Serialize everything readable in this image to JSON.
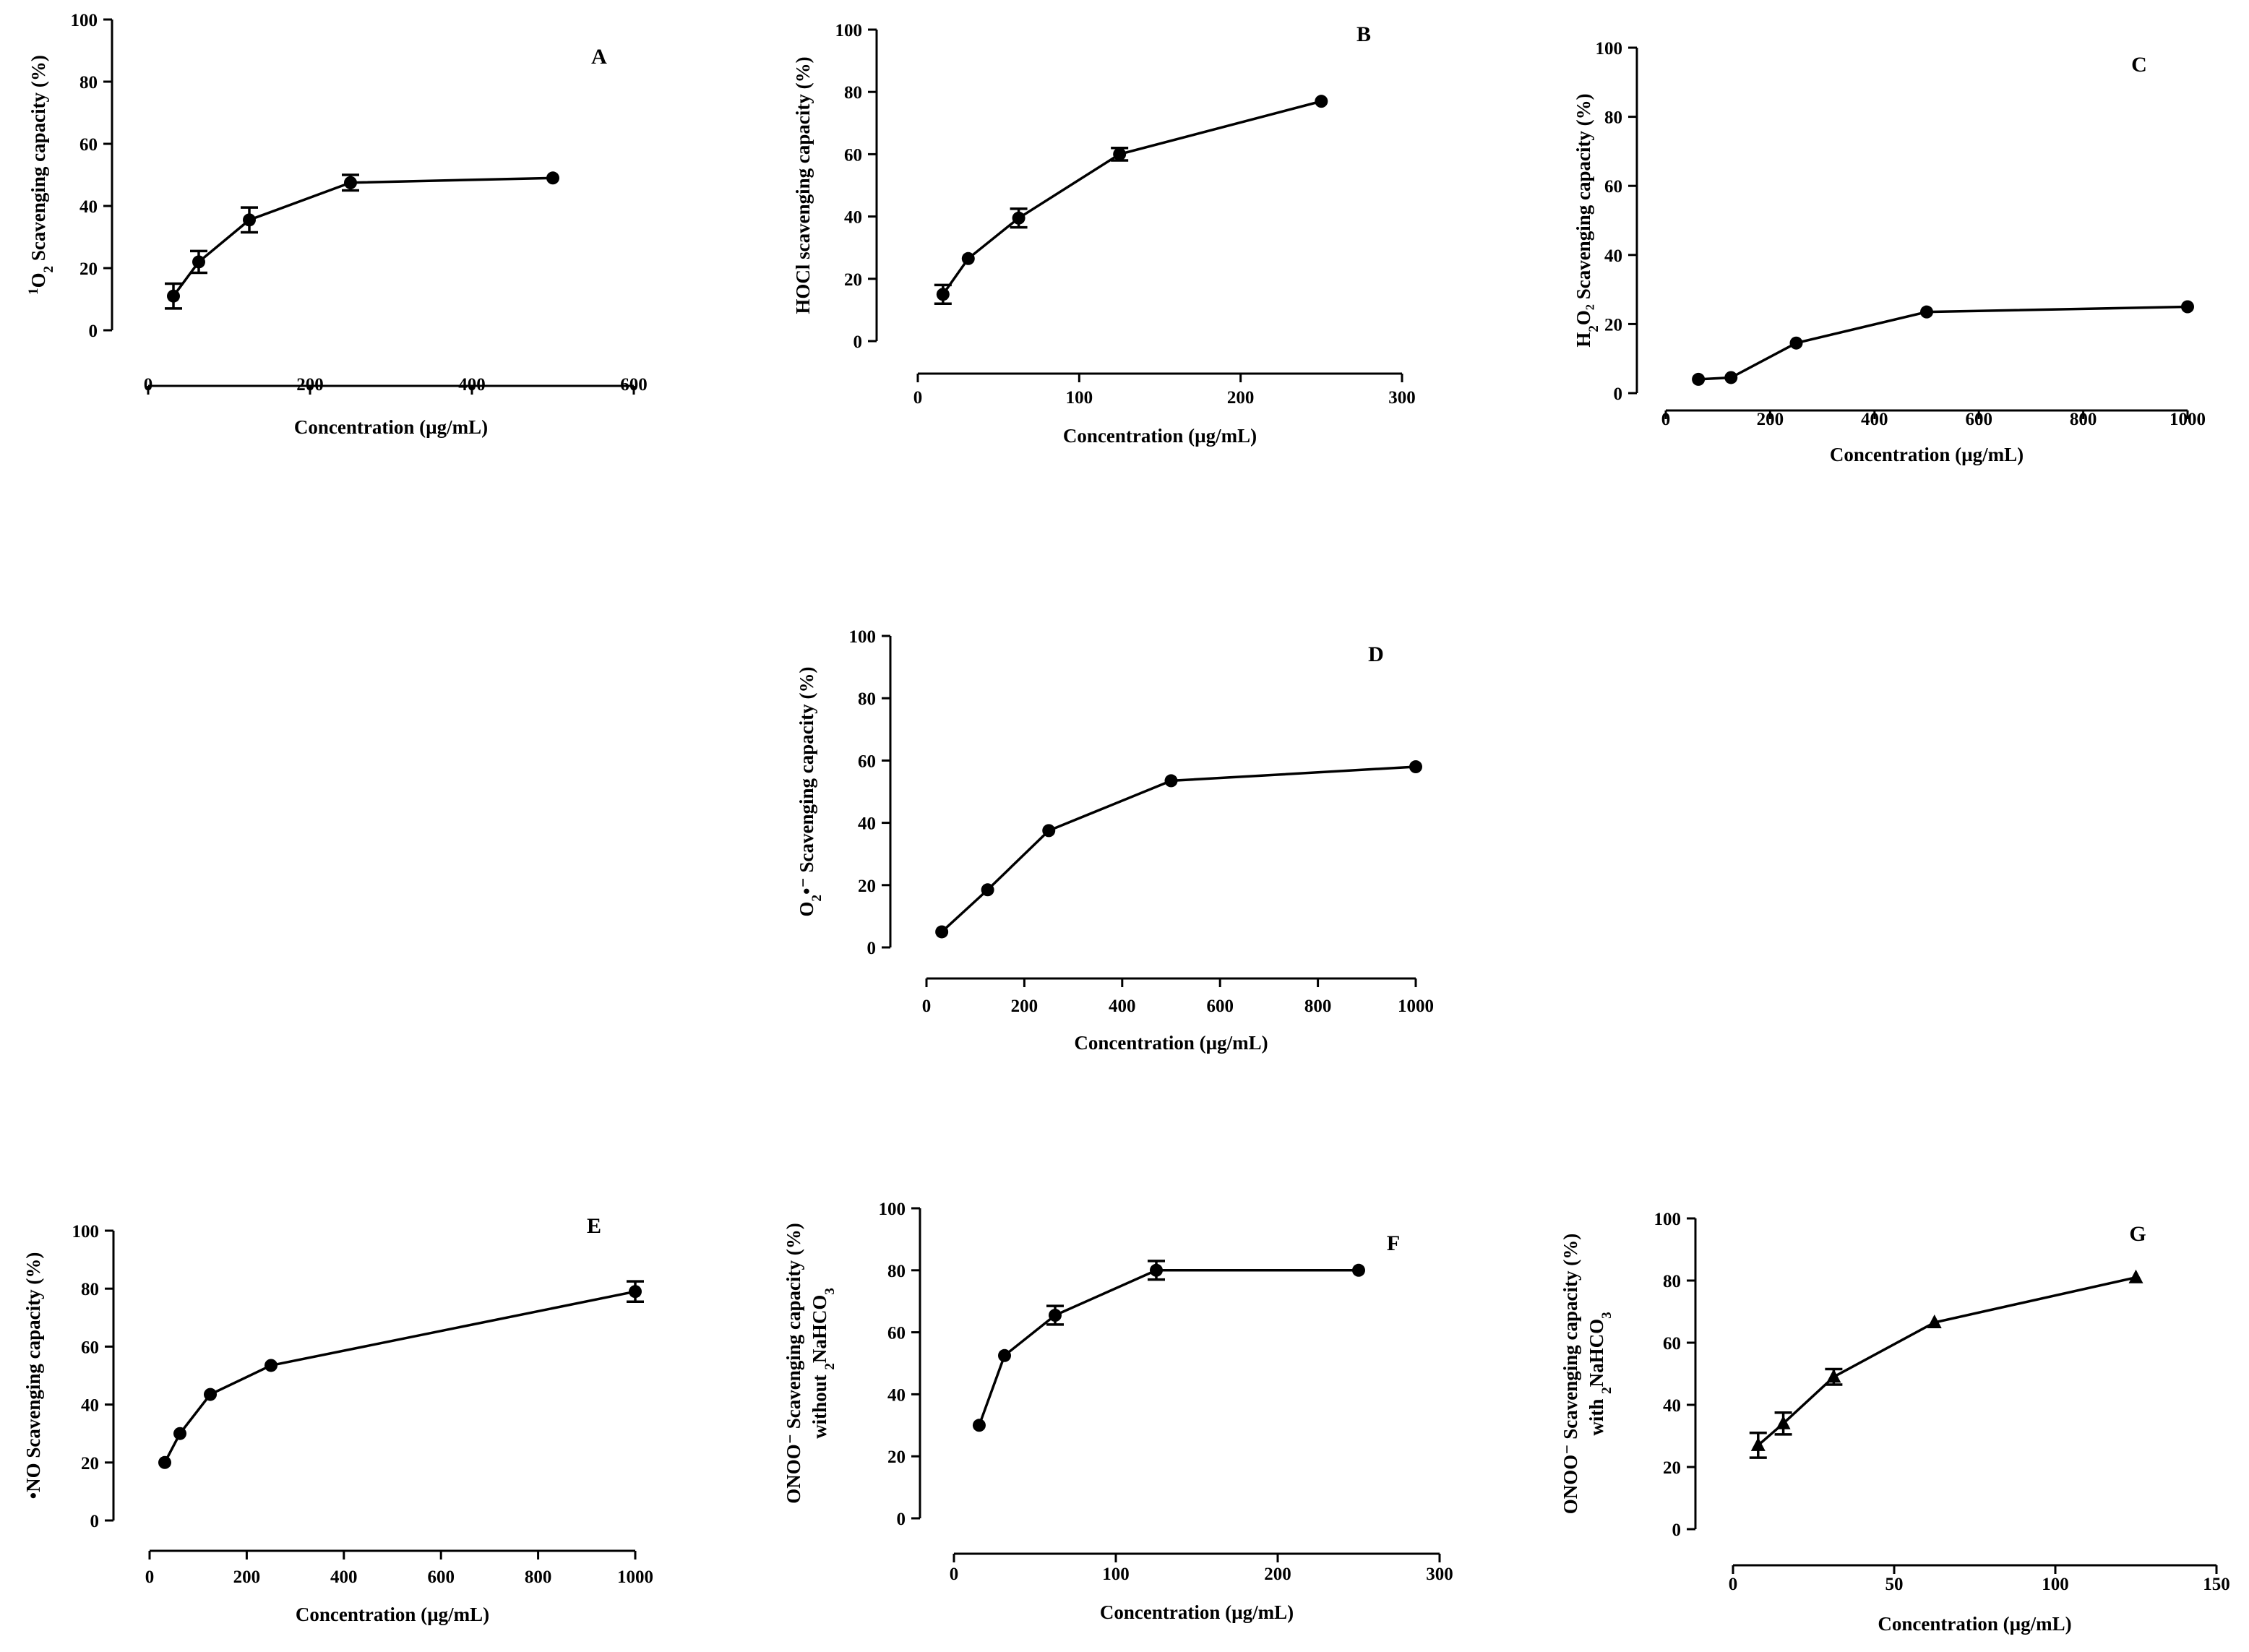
{
  "chart_data": [
    {
      "id": "A",
      "type": "line",
      "letter": "A",
      "xlabel": "Concentration (µg/mL)",
      "ylabel": {
        "pre": "",
        "sup": "1",
        "main": "O",
        "sub": "2",
        "rest": " Scavenging capacity (%)"
      },
      "xlim": [
        0,
        600
      ],
      "ylim": [
        0,
        100
      ],
      "xticks": [
        0,
        200,
        400,
        600
      ],
      "yticks": [
        0,
        20,
        40,
        60,
        80,
        100
      ],
      "marker": "circle",
      "x": [
        31.25,
        62.5,
        125,
        250,
        500
      ],
      "y": [
        11,
        22,
        35.5,
        47.5,
        49
      ],
      "err": [
        4,
        3.5,
        4,
        2.5,
        0
      ]
    },
    {
      "id": "B",
      "type": "line",
      "letter": "B",
      "xlabel": "Concentration (µg/mL)",
      "ylabel": {
        "pre": "",
        "sup": "",
        "main": "HOCl scavenging capacity (%)",
        "sub": "",
        "rest": ""
      },
      "xlim": [
        0,
        300
      ],
      "ylim": [
        0,
        100
      ],
      "xticks": [
        0,
        100,
        200,
        300
      ],
      "yticks": [
        0,
        20,
        40,
        60,
        80,
        100
      ],
      "marker": "circle",
      "x": [
        15.6,
        31.25,
        62.5,
        125,
        250
      ],
      "y": [
        15,
        26.5,
        39.5,
        60,
        77
      ],
      "err": [
        3,
        0,
        3,
        2,
        0
      ]
    },
    {
      "id": "C",
      "type": "line",
      "letter": "C",
      "xlabel": "Concentration (µg/mL)",
      "ylabel": {
        "pre": "",
        "sup": "",
        "main": "H",
        "sub": "2",
        "rest": "O₂ Scavenging capacity (%)"
      },
      "xlim": [
        0,
        1000
      ],
      "ylim": [
        0,
        100
      ],
      "xticks": [
        0,
        200,
        400,
        600,
        800,
        1000
      ],
      "yticks": [
        0,
        20,
        40,
        60,
        80,
        100
      ],
      "marker": "circle",
      "x": [
        62.5,
        125,
        250,
        500,
        1000
      ],
      "y": [
        4,
        4.5,
        14.5,
        23.5,
        25
      ],
      "err": [
        0,
        0,
        0,
        0,
        0
      ]
    },
    {
      "id": "D",
      "type": "line",
      "letter": "D",
      "xlabel": "Concentration (µg/mL)",
      "ylabel": {
        "pre": "",
        "sup": "",
        "main": "O",
        "sub": "2",
        "rest": "•⁻ Scavenging capacity (%)"
      },
      "xlim": [
        0,
        1000
      ],
      "ylim": [
        0,
        100
      ],
      "xticks": [
        0,
        200,
        400,
        600,
        800,
        1000
      ],
      "yticks": [
        0,
        20,
        40,
        60,
        80,
        100
      ],
      "marker": "circle",
      "x": [
        31.25,
        125,
        250,
        500,
        1000
      ],
      "y": [
        5,
        18.5,
        37.5,
        53.5,
        58
      ],
      "err": [
        0,
        0,
        0,
        0,
        0
      ]
    },
    {
      "id": "E",
      "type": "line",
      "letter": "E",
      "xlabel": "Concentration (µg/mL)",
      "ylabel": {
        "pre": "•",
        "sup": "",
        "main": "NO Scavenging capacity (%)",
        "sub": "",
        "rest": ""
      },
      "xlim": [
        0,
        1000
      ],
      "ylim": [
        0,
        100
      ],
      "xticks": [
        0,
        200,
        400,
        600,
        800,
        1000
      ],
      "yticks": [
        0,
        20,
        40,
        60,
        80,
        100
      ],
      "marker": "circle",
      "x": [
        31.25,
        62.5,
        125,
        250,
        1000
      ],
      "y": [
        20,
        30,
        43.5,
        53.5,
        79
      ],
      "err": [
        0,
        0,
        0,
        0,
        3.5
      ]
    },
    {
      "id": "F",
      "type": "line",
      "letter": "F",
      "xlabel": "Concentration (µg/mL)",
      "ylabel": {
        "pre": "",
        "sup": "",
        "main": "ONOO⁻ Scavenging capacity (%)",
        "sub": "",
        "rest": ""
      },
      "ylabel2": {
        "pre": "without ",
        "sub": "2",
        "main": "NaHCO",
        "sub2": "3"
      },
      "xlim": [
        0,
        300
      ],
      "ylim": [
        0,
        100
      ],
      "xticks": [
        0,
        100,
        200,
        300
      ],
      "yticks": [
        0,
        20,
        40,
        60,
        80,
        100
      ],
      "marker": "circle",
      "x": [
        15.6,
        31.25,
        62.5,
        125,
        250
      ],
      "y": [
        30,
        52.5,
        65.5,
        80,
        80
      ],
      "err": [
        0,
        0,
        3,
        3,
        0
      ]
    },
    {
      "id": "G",
      "type": "line",
      "letter": "G",
      "xlabel": "Concentration (µg/mL)",
      "ylabel": {
        "pre": "",
        "sup": "",
        "main": "ONOO⁻ Scavenging capacity (%)",
        "sub": "",
        "rest": ""
      },
      "ylabel2": {
        "pre": "with ",
        "sub": "2",
        "main": "NaHCO",
        "sub2": "3"
      },
      "xlim": [
        0,
        150
      ],
      "ylim": [
        0,
        100
      ],
      "xticks": [
        0,
        50,
        100,
        150
      ],
      "yticks": [
        0,
        20,
        40,
        60,
        80,
        100
      ],
      "marker": "triangle",
      "x": [
        7.8,
        15.6,
        31.25,
        62.5,
        125
      ],
      "y": [
        27,
        34,
        49,
        66.5,
        81
      ],
      "err": [
        4,
        3.5,
        2.5,
        0,
        0
      ]
    }
  ]
}
